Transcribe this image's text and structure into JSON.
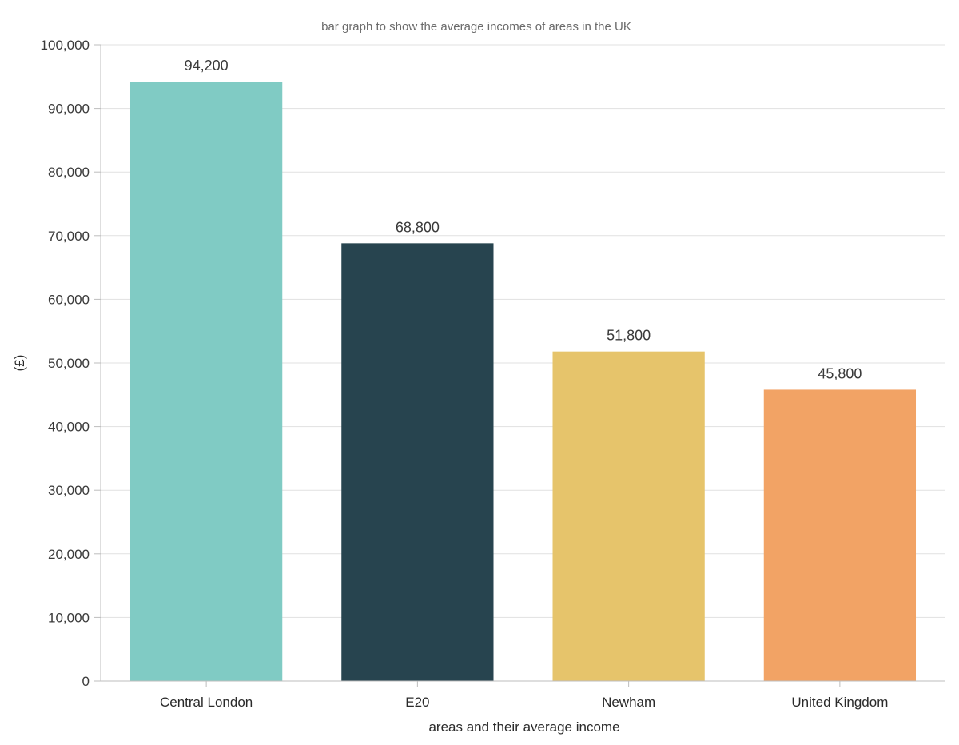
{
  "chart_data": {
    "type": "bar",
    "title": "bar graph to show the average incomes of areas in the UK",
    "xlabel": "areas and their average income",
    "ylabel": "(£)",
    "categories": [
      "Central London",
      "E20",
      "Newham",
      "United Kingdom"
    ],
    "values": [
      94200,
      68800,
      51800,
      45800
    ],
    "value_labels": [
      "94,200",
      "68,800",
      "51,800",
      "45,800"
    ],
    "colors": [
      "#80cbc4",
      "#27444f",
      "#e6c46b",
      "#f2a365"
    ],
    "ylim": [
      0,
      100000
    ],
    "yticks": [
      0,
      10000,
      20000,
      30000,
      40000,
      50000,
      60000,
      70000,
      80000,
      90000,
      100000
    ],
    "ytick_labels": [
      "0",
      "10,000",
      "20,000",
      "30,000",
      "40,000",
      "50,000",
      "60,000",
      "70,000",
      "80,000",
      "90,000",
      "100,000"
    ],
    "grid": true,
    "legend": "none"
  }
}
